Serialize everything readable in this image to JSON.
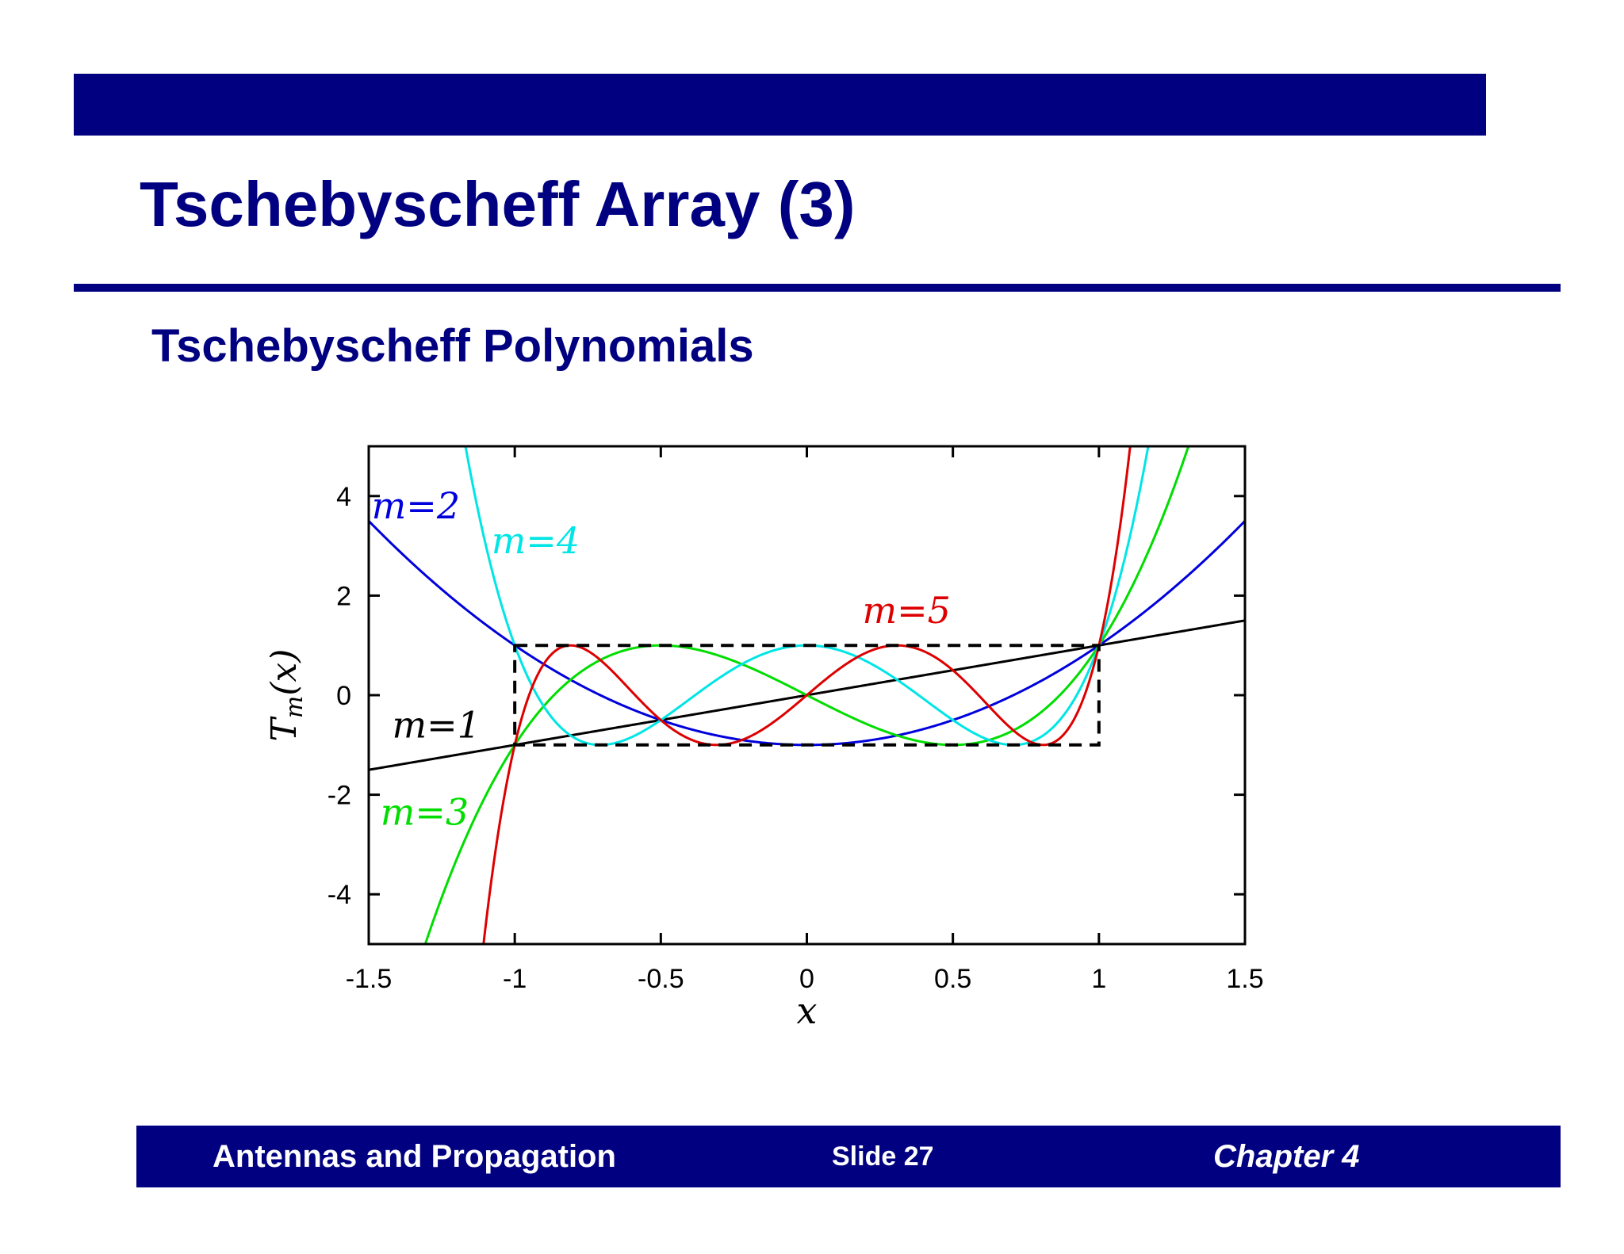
{
  "slide": {
    "title": "Tschebyscheff Array (3)",
    "subtitle": "Tschebyscheff Polynomials"
  },
  "footer": {
    "left": "Antennas and Propagation",
    "center": "Slide 27",
    "right": "Chapter 4"
  },
  "colors": {
    "brand": "#000080"
  },
  "chart_data": {
    "type": "line",
    "xlabel": "x",
    "ylabel": "T_m(x)",
    "xlim": [
      -1.5,
      1.5
    ],
    "ylim": [
      -5,
      5
    ],
    "xticks": [
      "-1.5",
      "-1",
      "-0.5",
      "0",
      "0.5",
      "1",
      "1.5"
    ],
    "yticks": [
      "4",
      "2",
      "0",
      "-2",
      "-4"
    ],
    "xtick_values": [
      -1.5,
      -1,
      -0.5,
      0,
      0.5,
      1,
      1.5
    ],
    "ytick_values": [
      4,
      2,
      0,
      -2,
      -4
    ],
    "grid": false,
    "reference_box": {
      "x": [
        -1,
        1
      ],
      "y": [
        -1,
        1
      ],
      "style": "dashed"
    },
    "series": [
      {
        "name": "m=1",
        "order": 1,
        "color": "#000000",
        "x": [
          -1.5,
          -1,
          -0.5,
          0,
          0.5,
          1,
          1.5
        ],
        "y": [
          -1.5,
          -1,
          -0.5,
          0,
          0.5,
          1,
          1.5
        ]
      },
      {
        "name": "m=2",
        "order": 2,
        "color": "#0000dd",
        "x": [
          -1.5,
          -1,
          -0.5,
          0,
          0.5,
          1,
          1.5
        ],
        "y": [
          3.5,
          1,
          -0.5,
          -1,
          -0.5,
          1,
          3.5
        ]
      },
      {
        "name": "m=3",
        "order": 3,
        "color": "#00dd00",
        "x": [
          -1.3,
          -1,
          -0.5,
          0,
          0.5,
          1,
          1.3
        ],
        "y": [
          -4.888,
          -1,
          1,
          0,
          -1,
          1,
          4.888
        ]
      },
      {
        "name": "m=4",
        "order": 4,
        "color": "#00e5e5",
        "x": [
          -1.2,
          -1,
          -0.5,
          0,
          0.5,
          1,
          1.2
        ],
        "y": [
          5.7,
          1,
          -0.5,
          1,
          -0.5,
          1,
          5.7
        ]
      },
      {
        "name": "m=5",
        "order": 5,
        "color": "#dd0000",
        "x": [
          -1.1,
          -1,
          -0.5,
          0,
          0.5,
          1,
          1.1
        ],
        "y": [
          -4.86,
          -1,
          -0.5,
          0,
          0.5,
          1,
          4.86
        ]
      }
    ],
    "annotations": [
      {
        "text": "m=2",
        "series": "m=2",
        "x": -1.49,
        "y": 3.55
      },
      {
        "text": "m=4",
        "series": "m=4",
        "x": -1.08,
        "y": 2.85
      },
      {
        "text": "m=5",
        "series": "m=5",
        "x": 0.19,
        "y": 1.45
      },
      {
        "text": "m=1",
        "series": "m=1",
        "x": -1.42,
        "y": -0.85
      },
      {
        "text": "m=3",
        "series": "m=3",
        "x": -1.46,
        "y": -2.6
      }
    ]
  }
}
